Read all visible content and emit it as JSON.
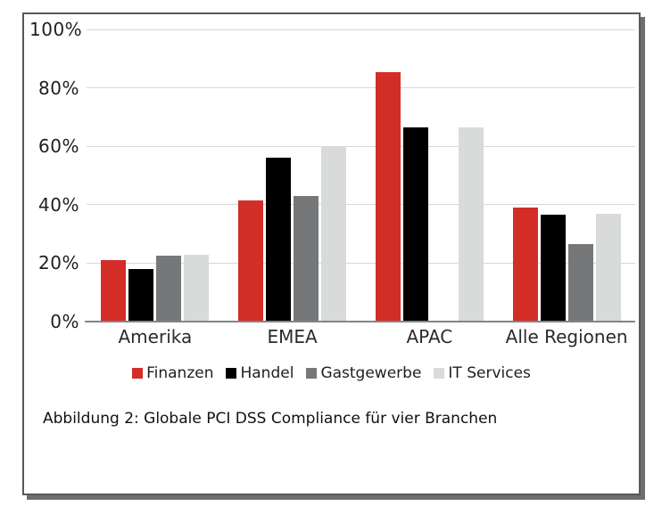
{
  "figure": {
    "caption": "Abbildung 2: Globale PCI DSS Compliance für vier Branchen",
    "border_color": "#595959",
    "shadow_color": "#6e6e6e",
    "background": "#ffffff"
  },
  "chart_data": {
    "type": "bar",
    "title": "",
    "categories": [
      "Amerika",
      "EMEA",
      "APAC",
      "Alle Regionen"
    ],
    "series": [
      {
        "name": "Finanzen",
        "color": "#d32d27",
        "values": [
          21,
          41.5,
          85.5,
          39
        ]
      },
      {
        "name": "Handel",
        "color": "#000000",
        "values": [
          18,
          56,
          66.5,
          36.5
        ]
      },
      {
        "name": "Gastgewerbe",
        "color": "#757779",
        "values": [
          22.5,
          43,
          0,
          26.5
        ]
      },
      {
        "name": "IT Services",
        "color": "#d9dada",
        "values": [
          23,
          60,
          66.5,
          37
        ]
      }
    ],
    "xlabel": "",
    "ylabel": "",
    "ylim": [
      0,
      100
    ],
    "ytick_step": 20,
    "yticks": [
      "0%",
      "20%",
      "40%",
      "60%",
      "80%",
      "100%"
    ],
    "grid": true,
    "gridline_color": "#d8d8d8",
    "axis_line_color": "#848484",
    "legend_position": "bottom"
  }
}
